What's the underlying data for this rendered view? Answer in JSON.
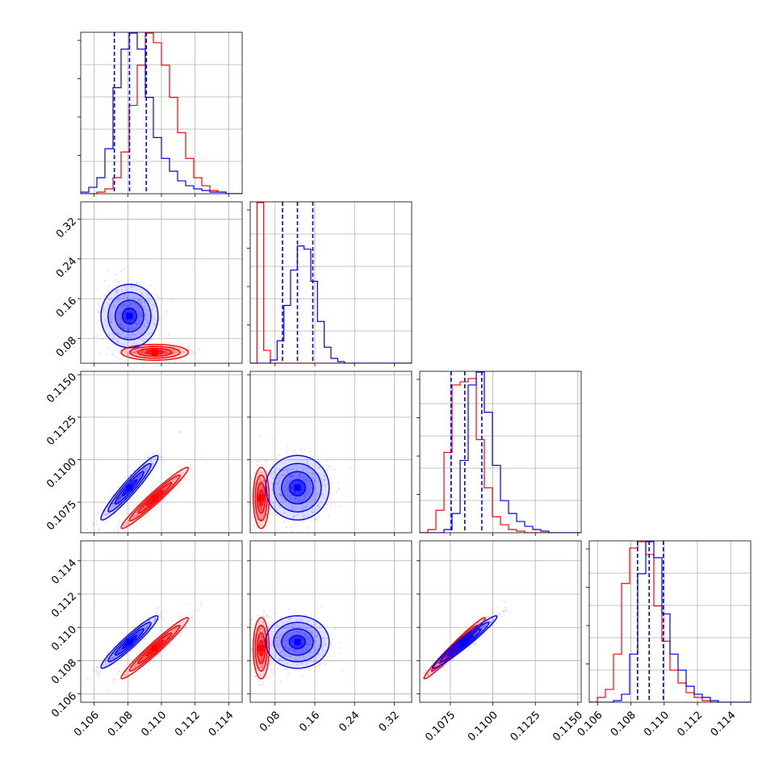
{
  "chart_data": {
    "type": "corner",
    "layout": "4x4 lower-triangular",
    "grid": true,
    "colors": {
      "series_a": "#0000ff",
      "series_b": "#ff0000",
      "quantile_lines": "#0000ff"
    },
    "params": [
      {
        "range": [
          0.1052,
          0.1148
        ],
        "ticks": [
          0.106,
          0.108,
          0.11,
          0.112,
          0.114
        ],
        "tick_labels": [
          "0.106",
          "0.108",
          "0.110",
          "0.112",
          "0.114"
        ]
      },
      {
        "range": [
          0.03,
          0.355
        ],
        "ticks": [
          0.08,
          0.16,
          0.24,
          0.32
        ],
        "tick_labels": [
          "0.08",
          "0.16",
          "0.24",
          "0.32"
        ]
      },
      {
        "range": [
          0.1057,
          0.1152
        ],
        "ticks": [
          0.1075,
          0.11,
          0.1125,
          0.115
        ],
        "tick_labels": [
          "0.1075",
          "0.1100",
          "0.1125",
          "0.1150"
        ]
      },
      {
        "range": [
          0.1055,
          0.1152
        ],
        "ticks": [
          0.106,
          0.108,
          0.11,
          0.112,
          0.114
        ],
        "tick_labels": [
          "0.106",
          "0.108",
          "0.110",
          "0.112",
          "0.114"
        ]
      }
    ],
    "series": [
      {
        "name": "",
        "color": "#0000ff",
        "mean": [
          0.1081,
          0.125,
          0.10835,
          0.10912
        ],
        "sd": [
          0.00085,
          0.032,
          0.00095,
          0.00079
        ],
        "corr": [
          [
            1,
            0,
            0.95,
            0.95
          ],
          [
            0,
            1,
            0,
            0
          ],
          [
            0.95,
            0,
            1,
            0.97
          ],
          [
            0.95,
            0,
            0.97,
            1
          ]
        ]
      },
      {
        "name": "",
        "color": "#ff0000",
        "mean": [
          0.1096,
          0.052,
          0.10775,
          0.10875
        ],
        "sd": [
          0.001,
          0.008,
          0.0009,
          0.00092
        ],
        "corr": [
          [
            1,
            0,
            0.97,
            0.97
          ],
          [
            0,
            1,
            0,
            0
          ],
          [
            0.97,
            0,
            1,
            0.98
          ],
          [
            0.97,
            0,
            0.98,
            1
          ]
        ]
      }
    ],
    "histograms": [
      {
        "blue": [
          1,
          4,
          10,
          28,
          66,
          90,
          100,
          90,
          60,
          35,
          22,
          14,
          8,
          5,
          3,
          2,
          1,
          1,
          0,
          0
        ],
        "red": [
          0,
          0,
          1,
          3,
          10,
          26,
          55,
          80,
          100,
          94,
          80,
          60,
          38,
          22,
          10,
          5,
          2,
          1,
          0,
          0
        ]
      },
      {
        "blue": [
          0,
          0,
          0,
          2,
          14,
          36,
          58,
          73,
          71,
          51,
          26,
          10,
          3,
          1,
          0,
          0,
          0,
          0,
          0,
          0,
          0,
          0,
          0,
          0
        ],
        "red": [
          0,
          100,
          8,
          0,
          0,
          0,
          0,
          0,
          0,
          0,
          0,
          0,
          0,
          0,
          0,
          0,
          0,
          0,
          0,
          0,
          0,
          0,
          0,
          0
        ]
      },
      {
        "blue": [
          0,
          0,
          0,
          2,
          12,
          45,
          92,
          100,
          75,
          42,
          20,
          12,
          7,
          4,
          2,
          1,
          0,
          0,
          0,
          0
        ],
        "red": [
          0,
          2,
          14,
          50,
          92,
          94,
          96,
          58,
          28,
          10,
          5,
          2,
          1,
          0,
          0,
          0,
          0,
          0,
          0,
          0
        ]
      },
      {
        "blue": [
          0,
          0,
          0,
          1,
          5,
          30,
          80,
          100,
          90,
          55,
          30,
          20,
          10,
          5,
          3,
          1,
          0,
          0,
          0,
          0
        ],
        "red": [
          0,
          3,
          8,
          30,
          74,
          96,
          100,
          92,
          60,
          38,
          20,
          12,
          6,
          3,
          1,
          0,
          0,
          0,
          0,
          0
        ]
      }
    ],
    "quantiles": [
      [
        0.1072,
        0.1081,
        0.1091
      ],
      [
        0.095,
        0.125,
        0.156
      ],
      [
        0.10755,
        0.10835,
        0.10935
      ],
      [
        0.1084,
        0.1091,
        0.10995
      ]
    ]
  }
}
